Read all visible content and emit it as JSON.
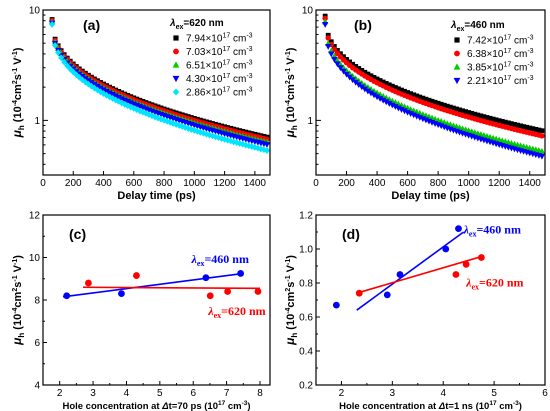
{
  "chart_data": [
    {
      "panel": "(a)",
      "type": "scatter",
      "x_scale": "linear",
      "y_scale": "log",
      "xlim": [
        0,
        1500
      ],
      "ylim": [
        0.32,
        10
      ],
      "xticks": [
        0,
        200,
        400,
        600,
        800,
        1000,
        1200,
        1400
      ],
      "yticks": [
        1,
        10
      ],
      "xlabel": "Delay time (ps)",
      "ylabel": "μh (10⁻⁴ cm² s⁻¹ V⁻¹)",
      "legend_title": "λex=620 nm",
      "series": [
        {
          "name": "7.94×10¹⁷ cm⁻³",
          "marker": "square",
          "color": "#000000",
          "mu0": 8.2,
          "mu_end": 0.7
        },
        {
          "name": "7.03×10¹⁷ cm⁻³",
          "marker": "circle",
          "color": "#ff0000",
          "mu0": 8.0,
          "mu_end": 0.67
        },
        {
          "name": "6.51×10¹⁷ cm⁻³",
          "marker": "triangle-up",
          "color": "#00cc00",
          "mu0": 7.8,
          "mu_end": 0.63
        },
        {
          "name": "4.30×10¹⁷ cm⁻³",
          "marker": "triangle-down",
          "color": "#0000ff",
          "mu0": 7.6,
          "mu_end": 0.6
        },
        {
          "name": "2.86×10¹⁷ cm⁻³",
          "marker": "diamond",
          "color": "#00e5ff",
          "mu0": 7.4,
          "mu_end": 0.53
        }
      ]
    },
    {
      "panel": "(b)",
      "type": "scatter",
      "x_scale": "linear",
      "y_scale": "log",
      "xlim": [
        0,
        1500
      ],
      "ylim": [
        0.32,
        10
      ],
      "xticks": [
        0,
        200,
        400,
        600,
        800,
        1000,
        1200,
        1400
      ],
      "yticks": [
        1,
        10
      ],
      "xlabel": "Delay time (ps)",
      "ylabel": "μh (10⁻⁴ cm² s⁻¹ V⁻¹)",
      "legend_title": "λex=460 nm",
      "series": [
        {
          "name": "7.42×10¹⁷ cm⁻³",
          "marker": "square",
          "color": "#000000",
          "mu0": 8.8,
          "mu_end": 0.8
        },
        {
          "name": "6.38×10¹⁷ cm⁻³",
          "marker": "circle",
          "color": "#ff0000",
          "mu0": 8.4,
          "mu_end": 0.72
        },
        {
          "name": "3.85×10¹⁷ cm⁻³",
          "marker": "triangle-up",
          "color": "#00cc00",
          "mu0": 7.8,
          "mu_end": 0.52
        },
        {
          "name": "2.21×10¹⁷ cm⁻³",
          "marker": "triangle-down",
          "color": "#0000ff",
          "mu0": 7.4,
          "mu_end": 0.47
        }
      ]
    },
    {
      "panel": "(c)",
      "type": "scatter",
      "xlim": [
        1.5,
        8.3
      ],
      "ylim": [
        4,
        12
      ],
      "xticks": [
        2,
        3,
        4,
        5,
        6,
        7,
        8
      ],
      "yticks": [
        4,
        6,
        8,
        10,
        12
      ],
      "xlabel": "Hole concentration at Δt=70 ps (10¹⁷ cm⁻³)",
      "ylabel": "μh (10⁻⁴ cm² s⁻¹ V⁻¹)",
      "series": [
        {
          "name": "λex=460 nm",
          "color": "#0000ff",
          "points": [
            [
              2.21,
              8.2
            ],
            [
              3.85,
              8.3
            ],
            [
              6.38,
              9.05
            ],
            [
              7.42,
              9.25
            ]
          ],
          "fit": [
            [
              2.1,
              8.15
            ],
            [
              7.5,
              9.25
            ]
          ]
        },
        {
          "name": "λex=620 nm",
          "color": "#ff0000",
          "points": [
            [
              2.86,
              8.8
            ],
            [
              4.3,
              9.15
            ],
            [
              6.51,
              8.2
            ],
            [
              7.03,
              8.4
            ],
            [
              7.94,
              8.4
            ]
          ],
          "fit": [
            [
              2.7,
              8.6
            ],
            [
              8.0,
              8.55
            ]
          ]
        }
      ]
    },
    {
      "panel": "(d)",
      "type": "scatter",
      "xlim": [
        1.5,
        6
      ],
      "ylim": [
        0.2,
        1.2
      ],
      "xticks": [
        2,
        3,
        4,
        5,
        6
      ],
      "yticks": [
        0.2,
        0.4,
        0.6,
        0.8,
        1.0,
        1.2
      ],
      "xlabel": "Hole concentration at Δt=1 ns (10¹⁷ cm⁻³)",
      "ylabel": "μh (10⁻⁴ cm² s⁻¹ V⁻¹)",
      "series": [
        {
          "name": "λex=460 nm",
          "color": "#0000ff",
          "points": [
            [
              1.9,
              0.67
            ],
            [
              2.9,
              0.73
            ],
            [
              3.15,
              0.85
            ],
            [
              4.05,
              1.0
            ],
            [
              4.3,
              1.12
            ]
          ],
          "fit": [
            [
              2.3,
              0.64
            ],
            [
              4.4,
              1.1
            ]
          ]
        },
        {
          "name": "λex=620 nm",
          "color": "#ff0000",
          "points": [
            [
              2.35,
              0.74
            ],
            [
              4.25,
              0.85
            ],
            [
              4.45,
              0.91
            ],
            [
              4.75,
              0.95
            ]
          ],
          "fit": [
            [
              2.3,
              0.74
            ],
            [
              4.8,
              0.96
            ]
          ]
        }
      ]
    }
  ],
  "labels": {
    "a": "(a)",
    "b": "(b)",
    "c": "(c)",
    "d": "(d)",
    "xlabel_ab": "Delay time (ps)",
    "xlabel_c_pre": "Hole concentration at ",
    "xlabel_c_mid": "t=70 ps (10",
    "xlabel_c_post": " cm",
    "xlabel_c_exp1": "17",
    "xlabel_c_exp2": "-3",
    "xlabel_d_pre": "Hole concentration at ",
    "xlabel_d_mid": "t=1 ns (10",
    "xlabel_d_post": " cm",
    "xlabel_d_exp1": "17",
    "xlabel_d_exp2": "-3",
    "lex_a": "=620 nm",
    "lex_b": "=460 nm",
    "anno_460": "=460 nm",
    "anno_620": "=620 nm",
    "lambda": "λ",
    "ex": "ex",
    "delta": "Δ"
  }
}
